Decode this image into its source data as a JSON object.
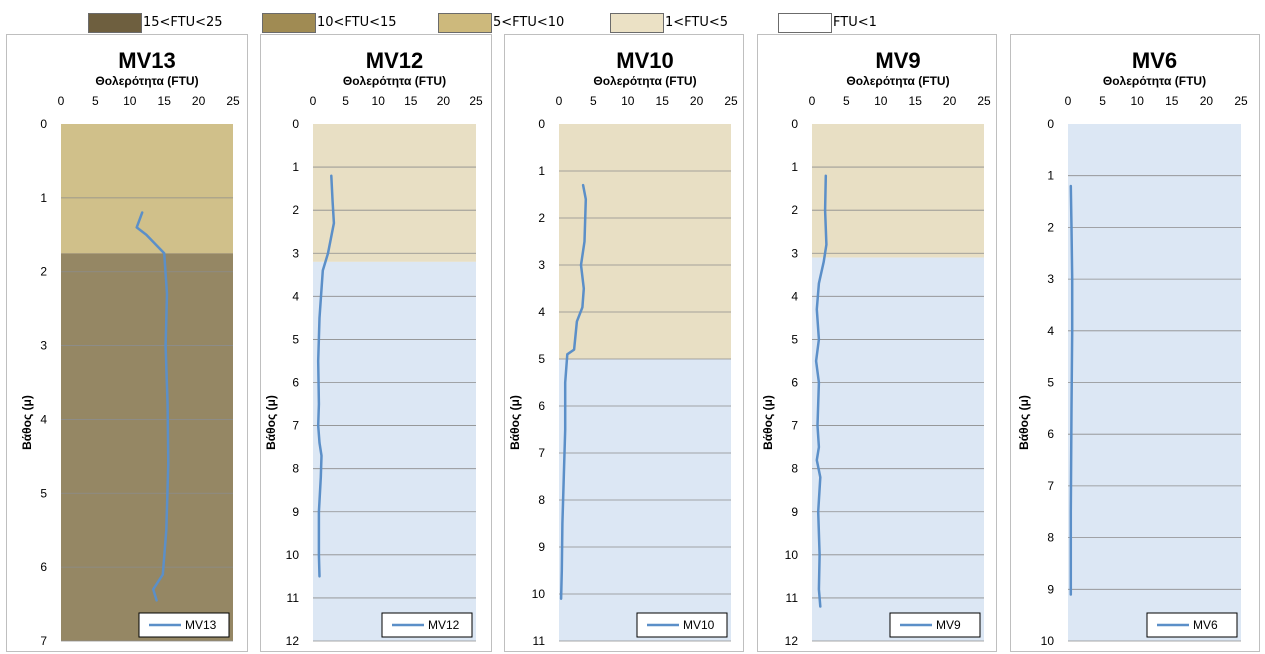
{
  "legend": [
    {
      "label": "15<FTU<25",
      "color": "#6e5f3f"
    },
    {
      "label": "10<FTU<15",
      "color": "#a08b53"
    },
    {
      "label": "5<FTU<10",
      "color": "#cdb97c"
    },
    {
      "label": "1<FTU<5",
      "color": "#ebe1c5"
    },
    {
      "label": "FTU<1",
      "color": "#ffffff"
    }
  ],
  "colors": {
    "zone_high": "#958764",
    "zone_mid": "#d0c08a",
    "zone_low": "#e8dfc4",
    "zone_clear": "#dce7f4",
    "line": "#5b8fc8",
    "grid": "#8c8c8c"
  },
  "chart_data": [
    {
      "type": "line",
      "title": "MV13",
      "xlabel": "Θολερότητα (FTU)",
      "ylabel": "Βάθος (μ)",
      "xlim": [
        0,
        25
      ],
      "ylim": [
        7,
        0
      ],
      "xticks": [
        0,
        5,
        10,
        15,
        20,
        25
      ],
      "yticks": [
        0,
        1,
        2,
        3,
        4,
        5,
        6,
        7
      ],
      "bands": [
        {
          "from": 0,
          "to": 1.75,
          "zone": "mid"
        },
        {
          "from": 1.75,
          "to": 7,
          "zone": "high"
        }
      ],
      "series": [
        {
          "name": "MV13",
          "x": [
            11.8,
            11.0,
            12.4,
            15.0,
            15.4,
            15.2,
            15.5,
            15.6,
            15.3,
            14.8,
            13.4,
            13.9
          ],
          "y": [
            1.2,
            1.4,
            1.5,
            1.75,
            2.3,
            3.0,
            3.8,
            4.6,
            5.5,
            6.1,
            6.3,
            6.45
          ]
        }
      ]
    },
    {
      "type": "line",
      "title": "MV12",
      "xlabel": "Θολερότητα (FTU)",
      "ylabel": "Βάθος (μ)",
      "xlim": [
        0,
        25
      ],
      "ylim": [
        12,
        0
      ],
      "xticks": [
        0,
        5,
        10,
        15,
        20,
        25
      ],
      "yticks": [
        0,
        1,
        2,
        3,
        4,
        5,
        6,
        7,
        8,
        9,
        10,
        11,
        12
      ],
      "bands": [
        {
          "from": 0,
          "to": 3.2,
          "zone": "low"
        },
        {
          "from": 3.2,
          "to": 12,
          "zone": "clear"
        }
      ],
      "series": [
        {
          "name": "MV12",
          "x": [
            2.8,
            3.0,
            3.2,
            2.3,
            1.5,
            1.0,
            0.8,
            0.9,
            0.8,
            1.0,
            1.3,
            1.2,
            0.9,
            0.9,
            1.0
          ],
          "y": [
            1.2,
            1.8,
            2.3,
            3.0,
            3.4,
            4.5,
            5.5,
            6.5,
            7.0,
            7.4,
            7.7,
            8.2,
            9.0,
            10.0,
            10.5
          ]
        }
      ]
    },
    {
      "type": "line",
      "title": "MV10",
      "xlabel": "Θολερότητα (FTU)",
      "ylabel": "Βάθος (μ)",
      "xlim": [
        0,
        25
      ],
      "ylim": [
        11,
        0
      ],
      "xticks": [
        0,
        5,
        10,
        15,
        20,
        25
      ],
      "yticks": [
        0,
        1,
        2,
        3,
        4,
        5,
        6,
        7,
        8,
        9,
        10,
        11
      ],
      "bands": [
        {
          "from": 0,
          "to": 5.0,
          "zone": "low"
        },
        {
          "from": 5.0,
          "to": 11,
          "zone": "clear"
        }
      ],
      "series": [
        {
          "name": "MV10",
          "x": [
            3.5,
            3.9,
            3.7,
            3.2,
            3.6,
            3.4,
            2.6,
            2.2,
            1.2,
            0.9,
            0.9,
            0.7,
            0.5,
            0.4,
            0.3
          ],
          "y": [
            1.3,
            1.6,
            2.5,
            3.0,
            3.5,
            3.9,
            4.2,
            4.8,
            4.9,
            5.5,
            6.5,
            7.5,
            8.5,
            9.5,
            10.1
          ]
        }
      ]
    },
    {
      "type": "line",
      "title": "MV9",
      "xlabel": "Θολερότητα (FTU)",
      "ylabel": "Βάθος (μ)",
      "xlim": [
        0,
        25
      ],
      "ylim": [
        12,
        0
      ],
      "xticks": [
        0,
        5,
        10,
        15,
        20,
        25
      ],
      "yticks": [
        0,
        1,
        2,
        3,
        4,
        5,
        6,
        7,
        8,
        9,
        10,
        11,
        12
      ],
      "bands": [
        {
          "from": 0,
          "to": 3.1,
          "zone": "low"
        },
        {
          "from": 3.1,
          "to": 12,
          "zone": "clear"
        }
      ],
      "series": [
        {
          "name": "MV9",
          "x": [
            2.0,
            1.9,
            2.1,
            1.7,
            1.0,
            0.7,
            1.0,
            0.6,
            1.0,
            0.8,
            1.0,
            0.7,
            1.2,
            0.9,
            1.1,
            1.0,
            1.2
          ],
          "y": [
            1.2,
            2.0,
            2.8,
            3.2,
            3.7,
            4.3,
            5.0,
            5.5,
            6.0,
            7.0,
            7.5,
            7.8,
            8.2,
            9.0,
            10.0,
            10.8,
            11.2
          ]
        }
      ]
    },
    {
      "type": "line",
      "title": "MV6",
      "xlabel": "Θολερότητα (FTU)",
      "ylabel": "Βάθος (μ)",
      "xlim": [
        0,
        25
      ],
      "ylim": [
        10,
        0
      ],
      "xticks": [
        0,
        5,
        10,
        15,
        20,
        25
      ],
      "yticks": [
        0,
        1,
        2,
        3,
        4,
        5,
        6,
        7,
        8,
        9,
        10
      ],
      "bands": [
        {
          "from": 0,
          "to": 10,
          "zone": "clear"
        }
      ],
      "series": [
        {
          "name": "MV6",
          "x": [
            0.4,
            0.5,
            0.6,
            0.6,
            0.5,
            0.4,
            0.4
          ],
          "y": [
            1.2,
            2.0,
            3.0,
            4.0,
            5.5,
            7.5,
            9.1
          ]
        }
      ]
    }
  ]
}
